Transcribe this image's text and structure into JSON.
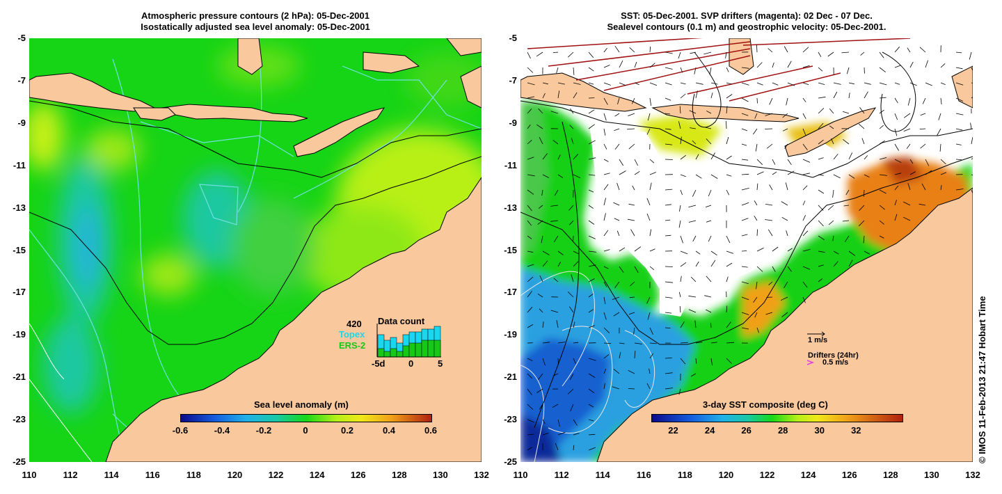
{
  "left_panel": {
    "title_line1": "Atmospheric pressure contours (2 hPa): 05-Dec-2001",
    "title_line2": "Isostatically adjusted sea level anomaly: 05-Dec-2001",
    "colorbar_label": "Sea level anomaly (m)",
    "colorbar_ticks": [
      "-0.6",
      "-0.4",
      "-0.2",
      "0",
      "0.2",
      "0.4",
      "0.6"
    ],
    "inset": {
      "title": "Data count",
      "count": "420",
      "topex_label": "Topex",
      "ers_label": "ERS-2",
      "x_ticks": [
        "-5d",
        "0",
        "5"
      ],
      "topex_counts": [
        8,
        6,
        7,
        5,
        8,
        9,
        9,
        10,
        10,
        11
      ],
      "ers_counts": [
        3,
        2,
        3,
        2,
        4,
        5,
        5,
        6,
        6,
        6
      ],
      "topex_color": "#19d7ef",
      "ers_color": "#18c818"
    }
  },
  "right_panel": {
    "title_line1": "SST: 05-Dec-2001. SVP drifters (magenta): 02 Dec - 07 Dec.",
    "title_line2": "Sealevel contours (0.1 m) and geostrophic velocity: 05-Dec-2001.",
    "colorbar_label": "3-day SST composite (deg C)",
    "colorbar_ticks": [
      "22",
      "24",
      "26",
      "28",
      "30",
      "32"
    ],
    "velocity_scale_label": "1 m/s",
    "drifters_label": "Drifters (24hr)",
    "drifter_scale_label": "0.5 m/s",
    "drifter_color": "#e040e0"
  },
  "axes": {
    "lat_ticks": [
      "-5",
      "-7",
      "-9",
      "-11",
      "-13",
      "-15",
      "-17",
      "-19",
      "-21",
      "-23",
      "-25"
    ],
    "lon_ticks": [
      "110",
      "112",
      "114",
      "116",
      "118",
      "120",
      "122",
      "124",
      "126",
      "128",
      "130",
      "132"
    ]
  },
  "credit": "© IMOS 11-Feb-2013 21:47 Hobart Time",
  "colors": {
    "land": "#f9c89c",
    "ocean_green": "#18d818",
    "ocean_lime": "#b4f018",
    "cloud_white": "#ffffff"
  }
}
